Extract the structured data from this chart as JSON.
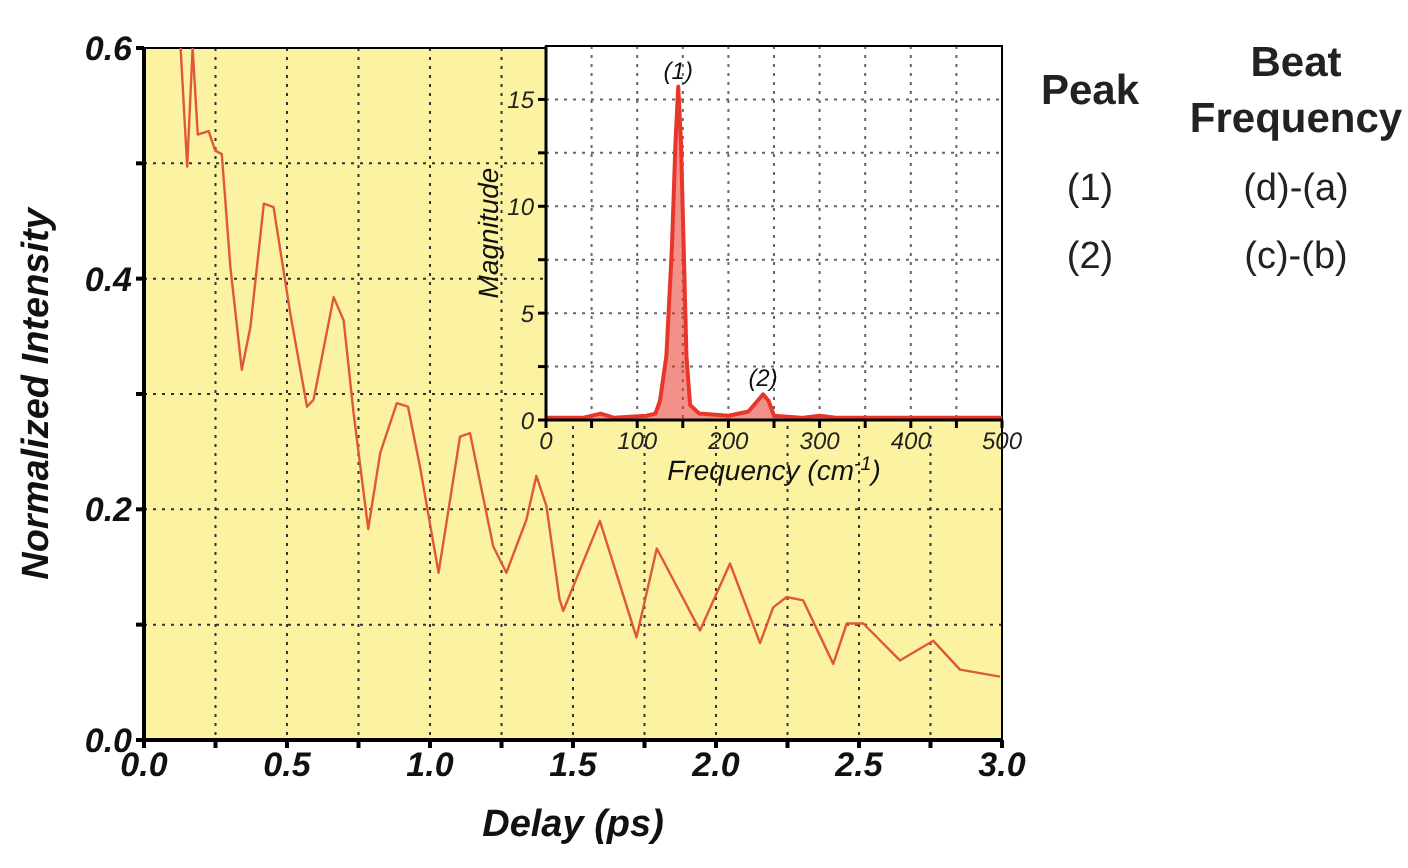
{
  "chart_data": [
    {
      "type": "line",
      "xlabel": "Delay (ps)",
      "ylabel": "Normalized Intensity",
      "xlim": [
        0,
        3
      ],
      "ylim": [
        0,
        0.6
      ],
      "xticks": [
        {
          "value": 0,
          "label": "0.0"
        },
        {
          "value": 0.25,
          "label": null
        },
        0.5,
        {
          "value": 0.75,
          "label": null
        },
        {
          "value": 1,
          "label": "1.0"
        },
        {
          "value": 1.25,
          "label": null
        },
        1.5,
        {
          "value": 1.75,
          "label": null
        },
        {
          "value": 2,
          "label": "2.0"
        },
        {
          "value": 2.25,
          "label": null
        },
        2.5,
        {
          "value": 2.75,
          "label": null
        },
        {
          "value": 3,
          "label": "3.0"
        }
      ],
      "yticks": [
        {
          "value": 0,
          "label": "0.0"
        },
        {
          "value": 0.1,
          "label": null
        },
        0.2,
        {
          "value": 0.3,
          "label": null
        },
        0.4,
        {
          "value": 0.5,
          "label": null
        },
        0.6
      ],
      "grid": true,
      "series": [
        {
          "color": "#e0583c",
          "x": [
            0.128,
            0.151,
            0.17,
            0.188,
            0.226,
            0.249,
            0.272,
            0.302,
            0.342,
            0.372,
            0.419,
            0.453,
            0.512,
            0.57,
            0.593,
            0.663,
            0.698,
            0.733,
            0.784,
            0.826,
            0.884,
            0.923,
            0.965,
            1.03,
            1.105,
            1.14,
            1.221,
            1.267,
            1.337,
            1.372,
            1.407,
            1.453,
            1.466,
            1.594,
            1.722,
            1.793,
            1.944,
            2.049,
            2.154,
            2.2,
            2.247,
            2.305,
            2.41,
            2.457,
            2.515,
            2.643,
            2.76,
            2.853,
            2.993
          ],
          "values": [
            0.6,
            0.497,
            0.6,
            0.525,
            0.528,
            0.511,
            0.508,
            0.41,
            0.321,
            0.358,
            0.465,
            0.462,
            0.369,
            0.289,
            0.295,
            0.384,
            0.364,
            0.283,
            0.183,
            0.249,
            0.292,
            0.289,
            0.237,
            0.145,
            0.263,
            0.266,
            0.168,
            0.145,
            0.191,
            0.229,
            0.203,
            0.122,
            0.112,
            0.19,
            0.089,
            0.166,
            0.095,
            0.153,
            0.084,
            0.115,
            0.124,
            0.121,
            0.066,
            0.101,
            0.101,
            0.069,
            0.086,
            0.061,
            0.055
          ]
        }
      ]
    },
    {
      "type": "area",
      "xlabel": "Frequency (cm$^{-1}$)",
      "ylabel": "Magnitude",
      "xlim": [
        0,
        500
      ],
      "ylim": [
        0,
        17.5
      ],
      "xticks": [
        0,
        {
          "value": 50,
          "label": null
        },
        100,
        {
          "value": 150,
          "label": null
        },
        200,
        {
          "value": 250,
          "label": null
        },
        300,
        {
          "value": 350,
          "label": null
        },
        400,
        {
          "value": 450,
          "label": null
        },
        500
      ],
      "yticks": [
        0,
        {
          "value": 2.5,
          "label": null
        },
        5,
        {
          "value": 7.5,
          "label": null
        },
        10,
        {
          "value": 12.5,
          "label": null
        },
        15
      ],
      "grid": true,
      "series": [
        {
          "color": "#e8372a",
          "x": [
            0,
            40,
            60,
            75,
            110,
            120,
            125,
            132,
            138,
            142,
            145,
            148,
            151,
            154,
            158,
            168,
            200,
            222,
            232,
            238,
            244,
            250,
            280,
            300,
            320,
            400,
            500
          ],
          "values": [
            0.1,
            0.1,
            0.3,
            0.1,
            0.2,
            0.3,
            0.9,
            3,
            8,
            13,
            15.6,
            13,
            8,
            3,
            0.7,
            0.3,
            0.2,
            0.4,
            0.9,
            1.2,
            0.9,
            0.2,
            0.1,
            0.2,
            0.1,
            0.1,
            0.1
          ]
        }
      ],
      "annotations": [
        {
          "text": "(1)",
          "x": 145,
          "y": 15.6
        },
        {
          "text": "(2)",
          "x": 238,
          "y": 1.2
        }
      ]
    },
    {
      "type": "other",
      "annotations": [
        "Peak",
        "Beat Frequency",
        "(1)",
        "(d)-(a)",
        "(2)",
        "(c)-(b)"
      ]
    }
  ]
}
